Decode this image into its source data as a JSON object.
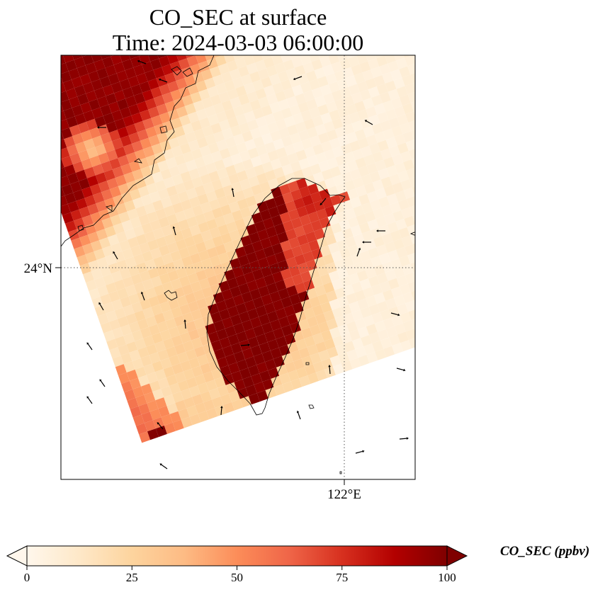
{
  "chart_data": {
    "type": "heatmap",
    "title": "CO_SEC at surface",
    "subtitle": "Time: 2024-03-03 06:00:00",
    "variable": "CO_SEC",
    "colorbar_label": "CO_SEC (ppbv)",
    "colormap": "OrRd",
    "colorbar_extend": "both",
    "colorbar_range": [
      0,
      100
    ],
    "colorbar_ticks": [
      "0",
      "25",
      "50",
      "75",
      "100"
    ],
    "lon_gridline": {
      "value": 122,
      "label": "122°E"
    },
    "lat_gridline": {
      "value": 24,
      "label": "24°N"
    },
    "gridline_style": "dotted",
    "overlays": [
      "coastlines",
      "wind vectors"
    ],
    "features": [
      {
        "name": "mainland coast plume (NW)",
        "approx_value": ">90"
      },
      {
        "name": "Taiwan island core",
        "approx_value": ">90"
      },
      {
        "name": "southern tip plume",
        "approx_value": "60-100"
      },
      {
        "name": "open ocean background",
        "approx_value": "5-30"
      }
    ]
  },
  "colors": {
    "cmap_stops": [
      "#fff7ec",
      "#fee8c8",
      "#fdd49e",
      "#fdbb84",
      "#fc8d59",
      "#ef6548",
      "#d7301f",
      "#b30000",
      "#7f0000"
    ],
    "coastline": "#000000",
    "gridline": "#555555"
  }
}
